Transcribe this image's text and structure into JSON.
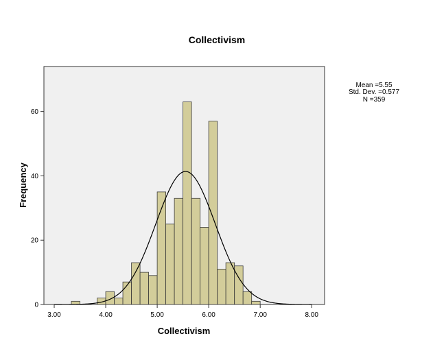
{
  "chart_data": {
    "type": "bar",
    "subtype": "histogram",
    "title": "Collectivism",
    "xlabel": "Collectivism",
    "ylabel": "Frequency",
    "xlim": [
      2.8,
      8.25
    ],
    "ylim": [
      0,
      74
    ],
    "xticks": [
      3.0,
      4.0,
      5.0,
      6.0,
      7.0,
      8.0
    ],
    "xtick_labels": [
      "3.00",
      "4.00",
      "5.00",
      "6.00",
      "7.00",
      "8.00"
    ],
    "yticks": [
      0,
      20,
      40,
      60
    ],
    "ytick_labels": [
      "0",
      "20",
      "40",
      "60"
    ],
    "bin_width": 0.1667,
    "bins": [
      {
        "start": 3.333,
        "value": 1
      },
      {
        "start": 3.5,
        "value": 0
      },
      {
        "start": 3.667,
        "value": 0
      },
      {
        "start": 3.833,
        "value": 2
      },
      {
        "start": 4.0,
        "value": 4
      },
      {
        "start": 4.167,
        "value": 2
      },
      {
        "start": 4.333,
        "value": 7
      },
      {
        "start": 4.5,
        "value": 13
      },
      {
        "start": 4.667,
        "value": 10
      },
      {
        "start": 4.833,
        "value": 9
      },
      {
        "start": 5.0,
        "value": 35
      },
      {
        "start": 5.167,
        "value": 25
      },
      {
        "start": 5.333,
        "value": 33
      },
      {
        "start": 5.5,
        "value": 63
      },
      {
        "start": 5.667,
        "value": 33
      },
      {
        "start": 5.833,
        "value": 24
      },
      {
        "start": 6.0,
        "value": 57
      },
      {
        "start": 6.167,
        "value": 11
      },
      {
        "start": 6.333,
        "value": 13
      },
      {
        "start": 6.5,
        "value": 12
      },
      {
        "start": 6.667,
        "value": 4
      },
      {
        "start": 6.833,
        "value": 1
      }
    ],
    "normal_curve": {
      "mean": 5.55,
      "sd": 0.577,
      "n": 359
    },
    "stats_lines": [
      "Mean =5.55",
      "Std. Dev. =0.577",
      "N =359"
    ],
    "grid": false,
    "legend": "none",
    "colors": {
      "bar_fill": "#d3cd9a",
      "bar_stroke": "#3a3a3a",
      "plot_background": "#f0f0f0",
      "curve": "#000000"
    }
  }
}
